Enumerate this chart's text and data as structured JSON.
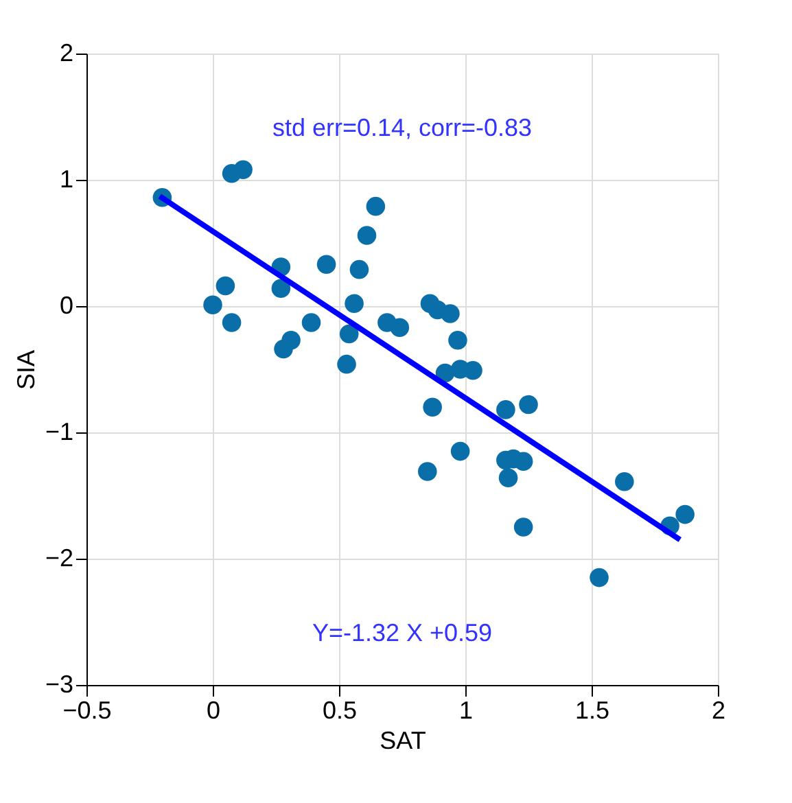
{
  "chart_data": {
    "type": "scatter",
    "xlabel": "SAT",
    "ylabel": "SIA",
    "xlim": [
      -0.5,
      2
    ],
    "xticks": [
      -0.5,
      0,
      0.5,
      1,
      1.5,
      2
    ],
    "ylim": [
      -3,
      2
    ],
    "yticks": [
      -3,
      -2,
      -1,
      0,
      1,
      2
    ],
    "grid": true,
    "annotations": [
      "std err=0.14, corr=-0.83",
      "Y=-1.32 X +0.59"
    ],
    "series": [
      {
        "marker": "circle",
        "color": "#0a6fa8",
        "x": [
          -0.2,
          0.075,
          0.12,
          0.05,
          0.0,
          0.075,
          0.27,
          0.27,
          0.45,
          0.58,
          0.61,
          0.645,
          0.56,
          0.54,
          0.53,
          0.39,
          0.31,
          0.28,
          0.69,
          0.74,
          0.86,
          0.89,
          0.94,
          0.97,
          0.92,
          0.98,
          1.03,
          0.87,
          0.85,
          0.98,
          1.16,
          1.25,
          1.16,
          1.19,
          1.23,
          1.17,
          1.63,
          1.87,
          1.81,
          1.53,
          1.23
        ],
        "values": [
          0.86,
          1.05,
          1.08,
          0.16,
          0.01,
          -0.13,
          0.31,
          0.14,
          0.33,
          0.29,
          0.56,
          0.79,
          0.02,
          -0.22,
          -0.46,
          -0.13,
          -0.27,
          -0.34,
          -0.13,
          -0.17,
          0.02,
          -0.03,
          -0.06,
          -0.27,
          -0.53,
          -0.5,
          -0.51,
          -0.8,
          -1.31,
          -1.15,
          -0.82,
          -0.78,
          -1.22,
          -1.21,
          -1.23,
          -1.36,
          -1.39,
          -1.65,
          -1.74,
          -2.15,
          -1.75
        ]
      },
      {
        "type": "line",
        "color": "#0000ff",
        "x": [
          -0.21,
          1.85
        ],
        "values": [
          0.87,
          -1.85
        ]
      }
    ]
  }
}
